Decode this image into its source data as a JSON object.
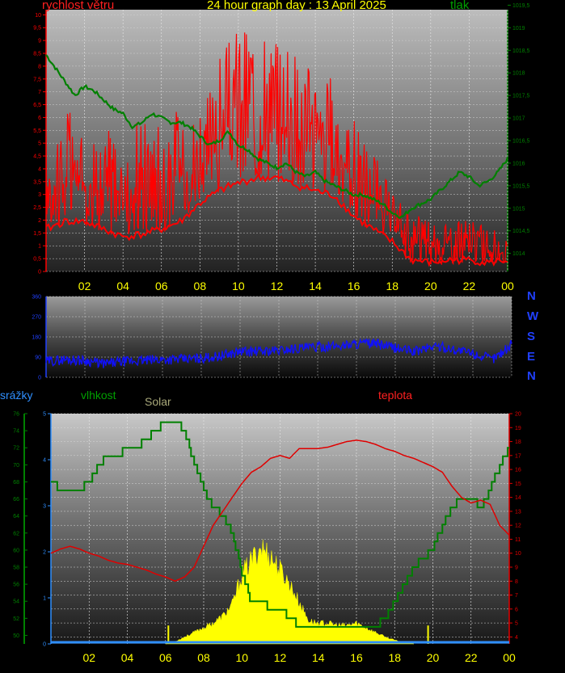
{
  "header": {
    "title": "24 hour graph day : 13 April 2025",
    "wind_label": "rychlost větru",
    "pressure_label": "tlak"
  },
  "time_axis": {
    "ticks": [
      "02",
      "04",
      "06",
      "08",
      "10",
      "12",
      "14",
      "16",
      "18",
      "20",
      "22",
      "00"
    ]
  },
  "compass": [
    "N",
    "W",
    "S",
    "E",
    "N"
  ],
  "bottom_labels": {
    "precip": "srážky",
    "humidity": "vlhkost",
    "solar": "Solar",
    "temperature": "teplota"
  },
  "colors": {
    "wind": "#ff0000",
    "pressure": "#008000",
    "direction": "#1010ff",
    "humidity": "#008000",
    "temperature": "#e00000",
    "solar": "#ffff00",
    "precip": "#2f8fff",
    "title": "#ffff00"
  },
  "chart_data": [
    {
      "type": "line",
      "title": "24 hour graph day : 13 April 2025",
      "x_range_hours": [
        0,
        24
      ],
      "series": [
        {
          "name": "rychlost větru",
          "axis": "left",
          "ylim": [
            0,
            10.2
          ],
          "ticks": [
            "0",
            "0,5",
            "1",
            "1,5",
            "2",
            "2,5",
            "3",
            "3,5",
            "4",
            "4,5",
            "5",
            "5,5",
            "6",
            "6,5",
            "7",
            "7,5",
            "8",
            "8,5",
            "9",
            "9,5",
            "10"
          ],
          "envelope_hours": [
            0,
            1,
            2,
            3,
            4,
            5,
            6,
            7,
            8,
            9,
            10,
            11,
            12,
            13,
            14,
            15,
            16,
            17,
            18,
            19,
            20,
            21,
            22,
            23,
            24
          ],
          "gust_max": [
            5.5,
            6.5,
            5.5,
            6.0,
            5.5,
            6.0,
            6.0,
            6.5,
            7.0,
            8.5,
            9.5,
            9.5,
            9.0,
            8.5,
            8.0,
            7.5,
            6.0,
            4.8,
            3.0,
            2.5,
            2.3,
            2.0,
            2.0,
            1.8,
            1.2
          ],
          "avg_min": [
            1.5,
            1.8,
            1.8,
            1.5,
            1.2,
            1.3,
            1.5,
            1.8,
            2.5,
            3.0,
            3.3,
            3.5,
            3.5,
            3.2,
            3.0,
            2.8,
            2.0,
            1.5,
            1.0,
            0.3,
            0.2,
            0.3,
            0.3,
            0.2,
            0.3
          ]
        },
        {
          "name": "tlak",
          "axis": "right",
          "ylim": [
            1013.6,
            1019.4
          ],
          "ticks": [
            "1014",
            "1014,5",
            "1015",
            "1015,5",
            "1016",
            "1016,5",
            "1017",
            "1017,5",
            "1018",
            "1018,5",
            "1019",
            "1019,5"
          ],
          "x": [
            0,
            0.5,
            1,
            1.5,
            2,
            2.5,
            3,
            3.5,
            4,
            4.5,
            5,
            5.5,
            6,
            6.5,
            7,
            7.5,
            8,
            8.5,
            9,
            9.5,
            10,
            10.5,
            11,
            11.5,
            12,
            12.5,
            13,
            13.5,
            14,
            14.5,
            15,
            15.5,
            16,
            16.5,
            17,
            17.5,
            18,
            18.5,
            19,
            19.5,
            20,
            20.5,
            21,
            21.5,
            22,
            22.5,
            23,
            23.5,
            24
          ],
          "y": [
            1018.4,
            1018.1,
            1017.8,
            1017.5,
            1017.7,
            1017.6,
            1017.4,
            1017.2,
            1017.1,
            1016.8,
            1016.9,
            1017.1,
            1017.0,
            1016.9,
            1016.9,
            1016.8,
            1016.6,
            1016.4,
            1016.5,
            1016.7,
            1016.4,
            1016.3,
            1016.1,
            1016.0,
            1015.9,
            1016.0,
            1015.8,
            1015.7,
            1015.8,
            1015.6,
            1015.5,
            1015.4,
            1015.3,
            1015.3,
            1015.2,
            1015.1,
            1014.9,
            1014.8,
            1015.0,
            1015.1,
            1015.2,
            1015.4,
            1015.6,
            1015.8,
            1015.7,
            1015.5,
            1015.6,
            1015.8,
            1016.1
          ]
        }
      ]
    },
    {
      "type": "line",
      "title": "",
      "ylim": [
        0,
        360
      ],
      "y_ticks": [
        "0",
        "90",
        "180",
        "270",
        "360"
      ],
      "series": [
        {
          "name": "",
          "x": [
            0,
            1,
            2,
            3,
            4,
            5,
            6,
            7,
            8,
            9,
            10,
            11,
            12,
            13,
            14,
            15,
            16,
            17,
            18,
            19,
            20,
            21,
            22,
            23,
            24
          ],
          "y": [
            70,
            80,
            75,
            60,
            70,
            75,
            80,
            80,
            85,
            95,
            115,
            115,
            120,
            130,
            135,
            140,
            150,
            150,
            130,
            115,
            140,
            125,
            105,
            80,
            145
          ]
        }
      ]
    },
    {
      "type": "line",
      "title": "",
      "axes": {
        "precip": {
          "ticks": [
            "0",
            "1",
            "2",
            "3",
            "4",
            "5"
          ],
          "ylim": [
            0,
            5
          ]
        },
        "humidity": {
          "ticks": [
            "50",
            "52",
            "54",
            "56",
            "58",
            "60",
            "62",
            "64",
            "66",
            "68",
            "70",
            "72",
            "74",
            "76"
          ],
          "ylim": [
            49,
            76
          ]
        },
        "temperature": {
          "ticks": [
            "4",
            "5",
            "6",
            "7",
            "8",
            "9",
            "10",
            "11",
            "12",
            "13",
            "14",
            "15",
            "16",
            "17",
            "18",
            "19",
            "20"
          ],
          "ylim": [
            3.5,
            20
          ]
        }
      },
      "series": [
        {
          "name": "vlhkost",
          "x": [
            0,
            0.5,
            1,
            1.5,
            2,
            2.5,
            3,
            3.5,
            4,
            4.5,
            5,
            5.5,
            6,
            6.5,
            7,
            7.5,
            8,
            8.5,
            9,
            9.5,
            10,
            10.5,
            11,
            11.5,
            12,
            12.5,
            13,
            13.5,
            14,
            14.5,
            15,
            15.5,
            16,
            16.5,
            17,
            17.5,
            18,
            18.5,
            19,
            19.5,
            20,
            20.5,
            21,
            21.5,
            22,
            22.5,
            23,
            23.5,
            24
          ],
          "y": [
            68,
            67,
            67,
            67,
            68,
            70,
            71,
            71,
            72,
            72,
            73,
            74,
            75,
            75,
            74,
            70,
            67,
            65,
            64,
            62,
            57,
            54,
            54,
            53,
            53,
            52,
            51,
            51,
            51,
            51,
            51,
            51,
            51,
            51,
            51,
            52,
            54,
            56,
            58,
            59,
            60,
            63,
            65,
            66,
            66,
            65,
            67,
            70,
            72
          ]
        },
        {
          "name": "teplota",
          "x": [
            0,
            0.5,
            1,
            1.5,
            2,
            2.5,
            3,
            3.5,
            4,
            4.5,
            5,
            5.5,
            6,
            6.5,
            7,
            7.5,
            8,
            8.5,
            9,
            9.5,
            10,
            10.5,
            11,
            11.5,
            12,
            12.5,
            13,
            13.5,
            14,
            14.5,
            15,
            15.5,
            16,
            16.5,
            17,
            17.5,
            18,
            18.5,
            19,
            19.5,
            20,
            20.5,
            21,
            21.5,
            22,
            22.5,
            23,
            23.5,
            24
          ],
          "y": [
            10,
            10.3,
            10.5,
            10.3,
            10,
            9.8,
            9.5,
            9.3,
            9.2,
            9,
            8.8,
            8.5,
            8.3,
            8,
            8.3,
            9,
            10.5,
            12,
            13,
            14,
            15,
            15.8,
            16.2,
            16.8,
            17,
            16.8,
            17.5,
            17.5,
            17.5,
            17.6,
            17.8,
            18,
            18.1,
            18,
            17.8,
            17.5,
            17.3,
            17,
            16.8,
            16.5,
            16.2,
            15.8,
            14.8,
            14,
            13.6,
            13.8,
            13.5,
            12,
            11.3
          ]
        },
        {
          "name": "Solar",
          "x": [
            6,
            6.5,
            7,
            7.5,
            8,
            8.5,
            9,
            9.5,
            10,
            10.5,
            11,
            11.5,
            12,
            12.5,
            13,
            13.5,
            14,
            14.5,
            15,
            15.5,
            16,
            16.5,
            17,
            17.5,
            18,
            18.5,
            19
          ],
          "y": [
            0,
            0.05,
            0.15,
            0.25,
            0.35,
            0.45,
            0.6,
            0.85,
            1.5,
            1.8,
            2.1,
            1.9,
            1.6,
            1.3,
            0.9,
            0.5,
            0.45,
            0.45,
            0.4,
            0.4,
            0.45,
            0.35,
            0.25,
            0.15,
            0.08,
            0.03,
            0
          ]
        },
        {
          "name": "srážky",
          "x": [
            0,
            24
          ],
          "y": [
            0,
            0
          ]
        }
      ]
    }
  ]
}
